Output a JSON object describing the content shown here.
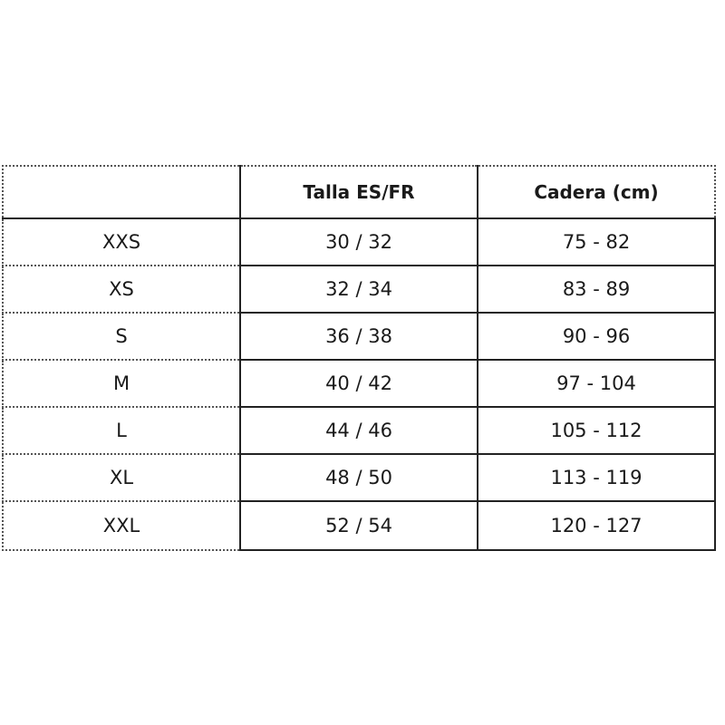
{
  "table": {
    "headers": [
      "",
      "Talla ES/FR",
      "Cadera (cm)"
    ],
    "rows": [
      [
        "XXS",
        "30 / 32",
        "75 - 82"
      ],
      [
        "XS",
        "32 / 34",
        "83 - 89"
      ],
      [
        "S",
        "36 / 38",
        "90 - 96"
      ],
      [
        "M",
        "40 / 42",
        "97 - 104"
      ],
      [
        "L",
        "44 / 46",
        "105 - 112"
      ],
      [
        "XL",
        "48 / 50",
        "113 - 119"
      ],
      [
        "XXL",
        "52 / 54",
        "120 - 127"
      ]
    ]
  }
}
